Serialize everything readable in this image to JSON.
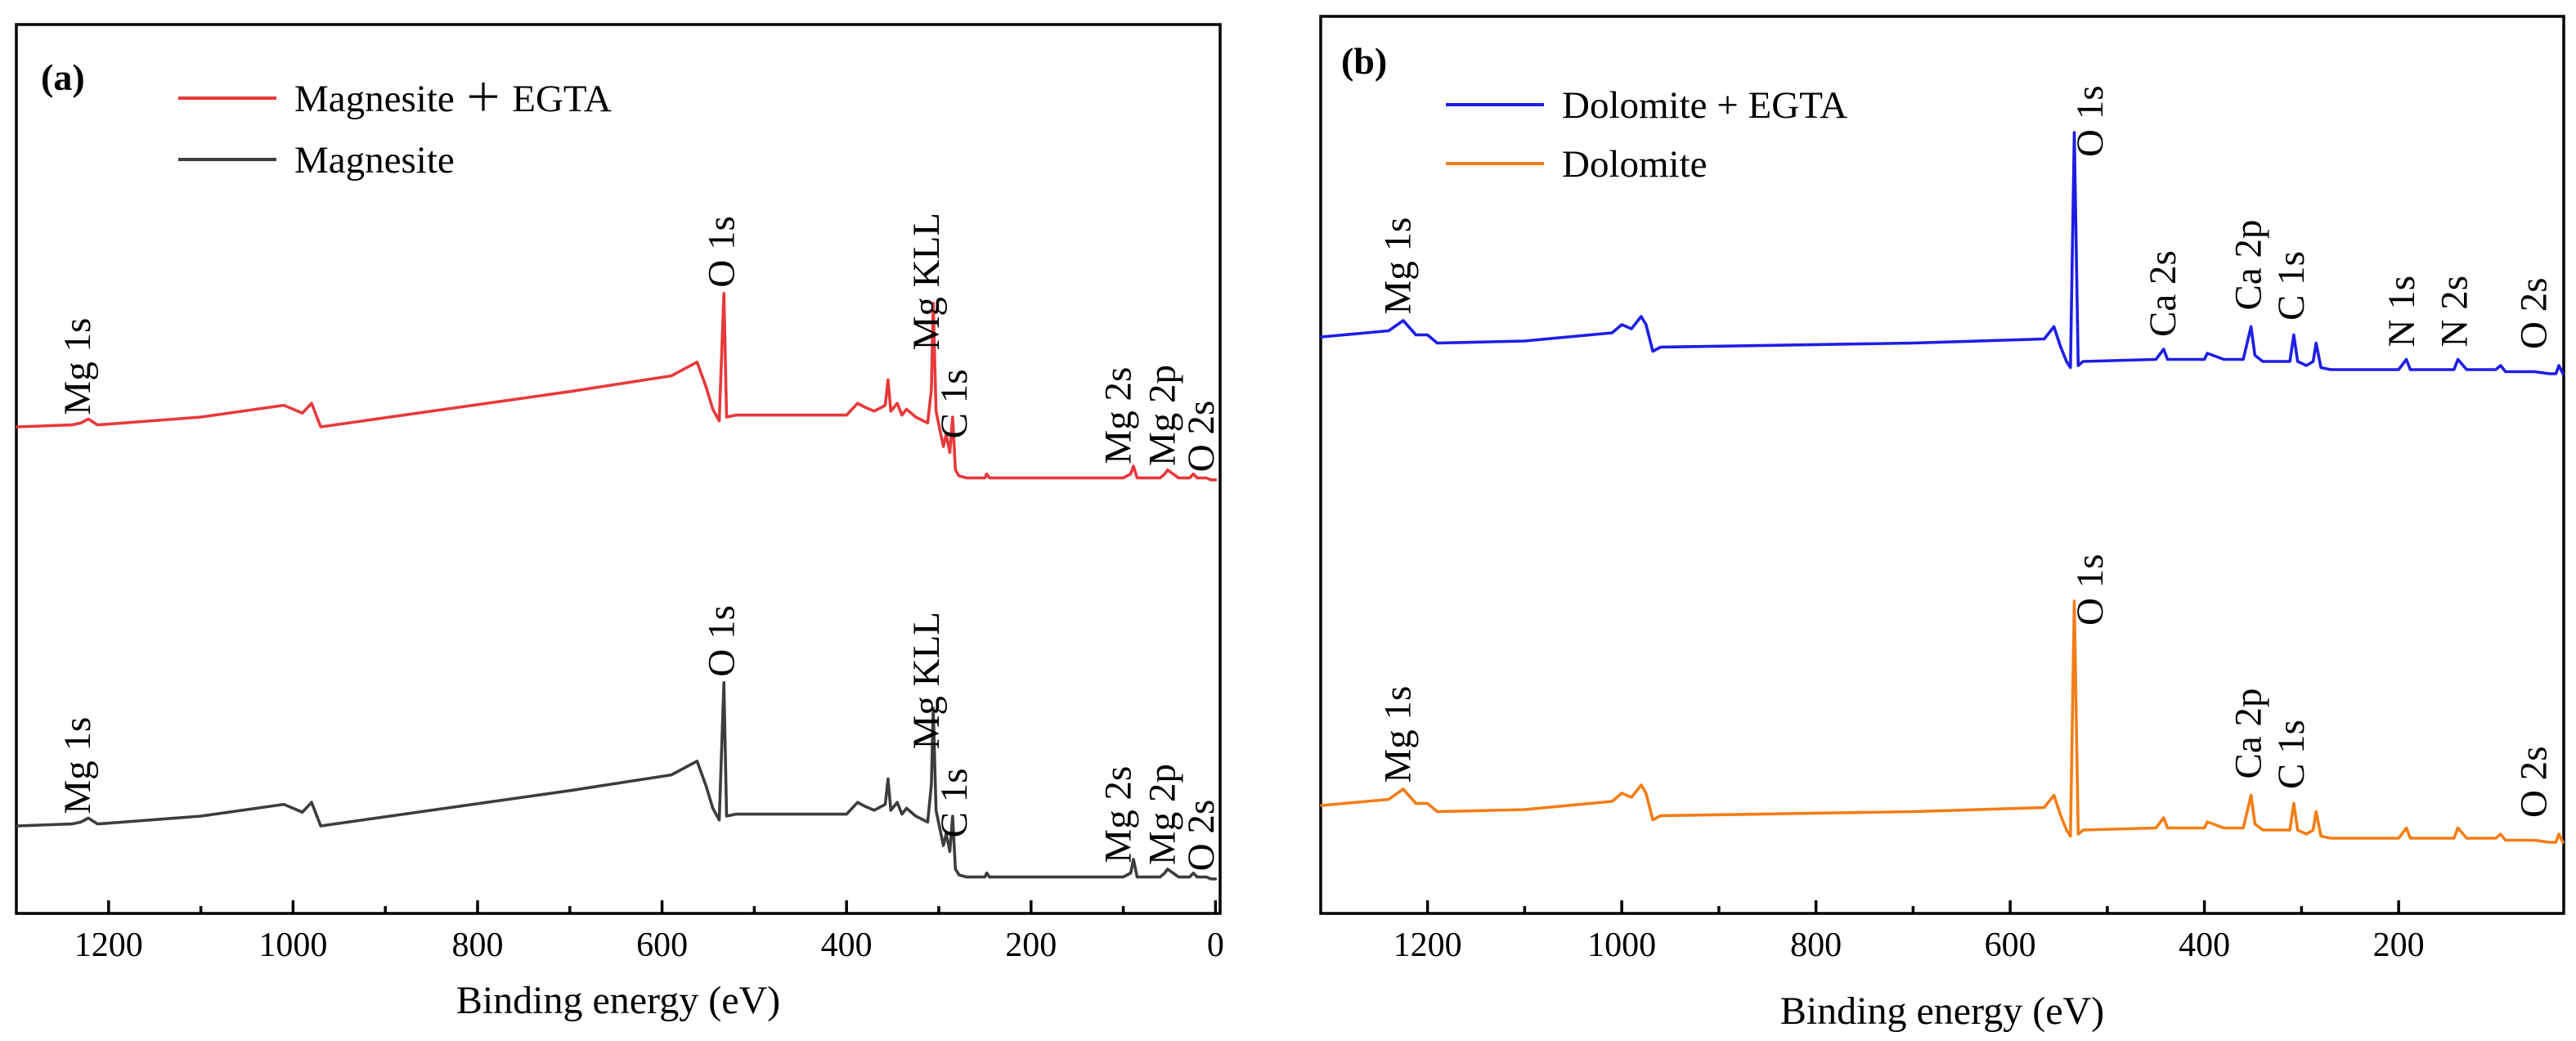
{
  "chart_data": [
    {
      "type": "line",
      "panel_label": "(a)",
      "xlabel": "Binding energy (eV)",
      "ylabel": "",
      "xlim": [
        1300,
        -5
      ],
      "x_ticks": [
        1200,
        1000,
        800,
        600,
        400,
        200,
        0
      ],
      "x_tick_labels": [
        "1200",
        "1000",
        "800",
        "600",
        "400",
        "200",
        "0"
      ],
      "y_ticks": false,
      "legend_position": "top-left",
      "series": [
        {
          "name": "Magnesite ＋ EGTA",
          "color": "#e8393b",
          "offset": 11.3,
          "x": [
            1300,
            1240,
            1230,
            1222,
            1212,
            1100,
            1010,
            1000,
            990,
            980,
            970,
            700,
            590,
            562,
            552,
            545,
            538,
            533,
            530,
            520,
            400,
            388,
            380,
            370,
            358,
            355,
            352,
            345,
            340,
            335,
            325,
            312,
            308,
            306,
            303,
            295,
            292,
            288,
            285,
            282,
            278,
            270,
            250,
            248,
            245,
            100,
            92,
            89,
            85,
            60,
            55,
            52,
            40,
            28,
            24,
            20,
            10,
            5,
            0
          ],
          "values": [
            0,
            0.1,
            0.2,
            0.4,
            0.1,
            0.5,
            1.1,
            0.9,
            0.7,
            1.2,
            0,
            1.8,
            2.6,
            3.3,
            2.0,
            0.9,
            0.3,
            6.8,
            0.5,
            0.6,
            0.6,
            1.2,
            1.0,
            0.8,
            1.1,
            2.4,
            0.8,
            1.2,
            0.6,
            0.9,
            0.5,
            0.2,
            1.9,
            6.3,
            0.8,
            -1.0,
            -0.4,
            -1.3,
            0.5,
            -2.2,
            -2.5,
            -2.6,
            -2.6,
            -2.4,
            -2.6,
            -2.6,
            -2.4,
            -2.0,
            -2.6,
            -2.6,
            -2.4,
            -2.2,
            -2.6,
            -2.6,
            -2.4,
            -2.6,
            -2.6,
            -2.7,
            -2.7
          ],
          "peak_labels": [
            {
              "text": "Mg 1s",
              "x": 1220,
              "y": 0.6
            },
            {
              "text": "O 1s",
              "x": 522,
              "y": 7.1
            },
            {
              "text": "Mg KLL",
              "x": 300,
              "y": 3.9
            },
            {
              "text": "C 1s",
              "x": 270,
              "y": -0.6
            },
            {
              "text": "Mg 2s",
              "x": 92,
              "y": -1.9
            },
            {
              "text": "Mg 2p",
              "x": 44,
              "y": -2.0
            },
            {
              "text": "O 2s",
              "x": 2,
              "y": -2.3
            }
          ]
        },
        {
          "name": "Magnesite",
          "color": "#3d3d3d",
          "offset": 0,
          "x": [
            1300,
            1240,
            1230,
            1222,
            1212,
            1100,
            1010,
            1000,
            990,
            980,
            970,
            700,
            590,
            562,
            552,
            545,
            538,
            533,
            530,
            520,
            400,
            388,
            380,
            370,
            358,
            355,
            352,
            345,
            340,
            335,
            325,
            312,
            308,
            306,
            303,
            295,
            292,
            288,
            285,
            282,
            278,
            270,
            250,
            248,
            245,
            100,
            92,
            89,
            85,
            60,
            55,
            52,
            40,
            28,
            24,
            20,
            10,
            5,
            0
          ],
          "values": [
            0,
            0.1,
            0.2,
            0.4,
            0.1,
            0.5,
            1.1,
            0.9,
            0.7,
            1.2,
            0,
            1.8,
            2.6,
            3.3,
            2.0,
            0.9,
            0.3,
            7.3,
            0.5,
            0.6,
            0.6,
            1.2,
            1.0,
            0.8,
            1.1,
            2.4,
            0.8,
            1.2,
            0.6,
            0.9,
            0.5,
            0.2,
            2.1,
            6.0,
            0.8,
            -1.0,
            -0.4,
            -1.3,
            0.5,
            -2.2,
            -2.5,
            -2.6,
            -2.6,
            -2.4,
            -2.6,
            -2.6,
            -2.4,
            -1.7,
            -2.6,
            -2.6,
            -2.4,
            -2.2,
            -2.6,
            -2.6,
            -2.4,
            -2.6,
            -2.6,
            -2.7,
            -2.7
          ],
          "peak_labels": [
            {
              "text": "O 1s",
              "x": 522,
              "y": 7.6
            },
            {
              "text": "Mg 1s",
              "x": 1220,
              "y": 0.6
            },
            {
              "text": "Mg KLL",
              "x": 300,
              "y": 3.9
            },
            {
              "text": "C 1s",
              "x": 270,
              "y": -0.6
            },
            {
              "text": "Mg 2s",
              "x": 92,
              "y": -1.9
            },
            {
              "text": "Mg 2p",
              "x": 44,
              "y": -2.0
            },
            {
              "text": "O 2s",
              "x": 2,
              "y": -2.3
            }
          ]
        }
      ]
    },
    {
      "type": "line",
      "panel_label": "(b)",
      "xlabel": "Binding energy (eV)",
      "ylabel": "",
      "xlim": [
        1310,
        30
      ],
      "x_ticks": [
        1200,
        1000,
        800,
        600,
        400,
        200
      ],
      "x_tick_labels": [
        "1200",
        "1000",
        "800",
        "600",
        "400",
        "200"
      ],
      "y_ticks": false,
      "legend_position": "top-left",
      "series": [
        {
          "name": "Dolomite + EGTA",
          "color": "#1e1ee6",
          "offset": 10.6,
          "x": [
            1310,
            1240,
            1225,
            1212,
            1200,
            1190,
            1100,
            1010,
            1000,
            990,
            980,
            975,
            968,
            960,
            700,
            565,
            555,
            548,
            542,
            538,
            534,
            530,
            525,
            450,
            442,
            438,
            400,
            397,
            380,
            360,
            352,
            348,
            340,
            312,
            308,
            304,
            295,
            288,
            285,
            280,
            270,
            200,
            192,
            188,
            160,
            143,
            139,
            130,
            100,
            95,
            90,
            60,
            45,
            38,
            35,
            30
          ],
          "values": [
            0,
            0.3,
            0.8,
            0.1,
            0.1,
            -0.3,
            -0.2,
            0.2,
            0.6,
            0.4,
            1.0,
            0.6,
            -0.7,
            -0.5,
            -0.3,
            -0.1,
            0.5,
            -0.5,
            -1.2,
            -1.5,
            10.0,
            -1.4,
            -1.2,
            -1.1,
            -0.6,
            -1.1,
            -1.1,
            -0.8,
            -1.1,
            -1.1,
            0.5,
            -0.9,
            -1.2,
            -1.2,
            0.1,
            -1.2,
            -1.4,
            -1.2,
            -0.3,
            -1.5,
            -1.6,
            -1.6,
            -1.1,
            -1.6,
            -1.6,
            -1.6,
            -1.1,
            -1.6,
            -1.6,
            -1.4,
            -1.7,
            -1.7,
            -1.8,
            -1.8,
            -1.4,
            -1.8
          ],
          "peak_labels": [
            {
              "text": "Mg 1s",
              "x": 1218,
              "y": 1.1
            },
            {
              "text": "O 1s",
              "x": 505,
              "y": 8.8
            },
            {
              "text": "Ca 2s",
              "x": 430,
              "y": 0.0
            },
            {
              "text": "Ca 2p",
              "x": 342,
              "y": 1.3
            },
            {
              "text": "C 1s",
              "x": 298,
              "y": 0.8
            },
            {
              "text": "N 1s",
              "x": 184,
              "y": -0.5
            },
            {
              "text": "N 2s",
              "x": 130,
              "y": -0.5
            },
            {
              "text": "O 2s",
              "x": 48,
              "y": -0.6
            }
          ]
        },
        {
          "name": "Dolomite",
          "color": "#f47d16",
          "offset": 0,
          "x": [
            1310,
            1240,
            1225,
            1212,
            1200,
            1190,
            1100,
            1010,
            1000,
            990,
            980,
            975,
            968,
            960,
            700,
            565,
            555,
            548,
            542,
            538,
            534,
            530,
            525,
            450,
            442,
            438,
            400,
            397,
            380,
            360,
            352,
            348,
            340,
            312,
            308,
            304,
            295,
            288,
            285,
            280,
            270,
            200,
            192,
            188,
            160,
            143,
            139,
            130,
            100,
            95,
            90,
            60,
            45,
            38,
            35,
            30
          ],
          "values": [
            0,
            0.3,
            0.8,
            0.1,
            0.1,
            -0.3,
            -0.2,
            0.2,
            0.6,
            0.4,
            1.0,
            0.6,
            -0.7,
            -0.5,
            -0.3,
            -0.1,
            0.5,
            -0.5,
            -1.2,
            -1.5,
            10.0,
            -1.4,
            -1.2,
            -1.1,
            -0.6,
            -1.1,
            -1.1,
            -0.8,
            -1.1,
            -1.1,
            0.5,
            -0.9,
            -1.2,
            -1.2,
            0.1,
            -1.2,
            -1.4,
            -1.2,
            -0.3,
            -1.5,
            -1.6,
            -1.6,
            -1.1,
            -1.6,
            -1.6,
            -1.6,
            -1.1,
            -1.6,
            -1.6,
            -1.4,
            -1.7,
            -1.7,
            -1.8,
            -1.8,
            -1.4,
            -1.8
          ],
          "peak_labels": [
            {
              "text": "O 1s",
              "x": 505,
              "y": 8.8
            },
            {
              "text": "Mg 1s",
              "x": 1218,
              "y": 1.1
            },
            {
              "text": "Ca 2p",
              "x": 342,
              "y": 1.3
            },
            {
              "text": "C 1s",
              "x": 298,
              "y": 0.8
            },
            {
              "text": "O 2s",
              "x": 48,
              "y": -0.6
            }
          ]
        }
      ]
    }
  ]
}
